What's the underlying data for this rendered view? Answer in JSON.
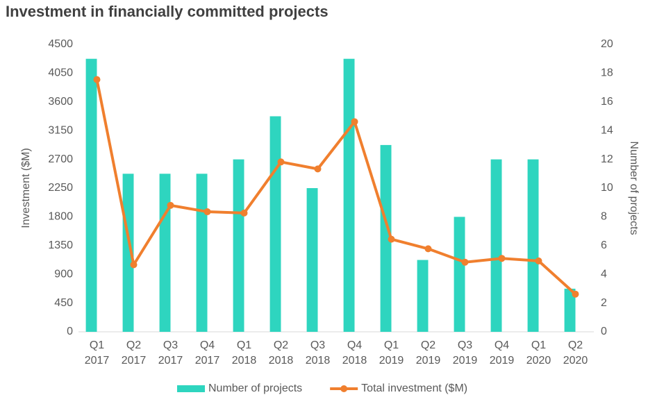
{
  "chart_data": {
    "type": "bar-line",
    "title": "Investment in financially committed projects",
    "categories": [
      "Q1 2017",
      "Q2 2017",
      "Q3 2017",
      "Q4 2017",
      "Q1 2018",
      "Q2 2018",
      "Q3 2018",
      "Q4 2018",
      "Q1 2019",
      "Q2 2019",
      "Q3 2019",
      "Q4 2019",
      "Q1 2020",
      "Q2 2020"
    ],
    "y_label": "Investment ($M)",
    "y2_label": "Number of projects",
    "ylim": [
      0,
      4500
    ],
    "yticks": [
      0,
      450,
      900,
      1350,
      1800,
      2250,
      2700,
      3150,
      3600,
      4050,
      4500
    ],
    "y2lim": [
      0,
      20
    ],
    "y2ticks": [
      0,
      2,
      4,
      6,
      8,
      10,
      12,
      14,
      16,
      18,
      20
    ],
    "legend": "bottom",
    "series": [
      {
        "name": "Number of projects",
        "kind": "bar",
        "axis": "y2",
        "color": "#2ed5bf",
        "values": [
          19,
          11,
          11,
          11,
          12,
          15,
          10,
          19,
          13,
          5,
          8,
          12,
          12,
          3
        ]
      },
      {
        "name": "Total investment ($M)",
        "kind": "line",
        "axis": "y",
        "color": "#f07f2e",
        "values": [
          3950,
          1050,
          1980,
          1880,
          1860,
          2660,
          2550,
          3290,
          1450,
          1300,
          1090,
          1150,
          1110,
          590
        ]
      }
    ]
  }
}
